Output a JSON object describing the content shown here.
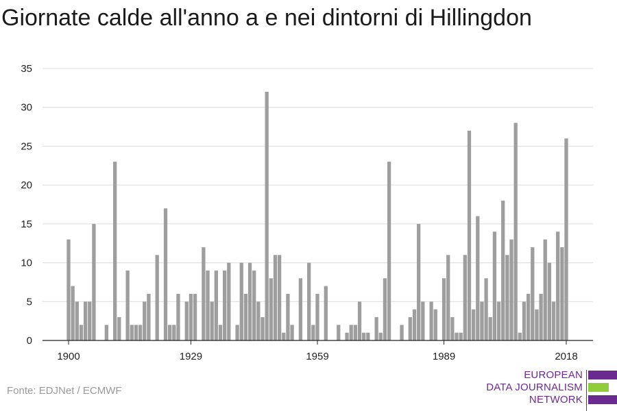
{
  "title": "Giornate calde all'anno a e nei dintorni di Hillingdon",
  "source": "Fonte: EDJNet / ECMWF",
  "logo": {
    "lines": [
      "EUROPEAN",
      "DATA JOURNALISM",
      "NETWORK"
    ],
    "colors": [
      "#6b2a8f",
      "#8fce3a",
      "#6b2a8f"
    ]
  },
  "chart_data": {
    "type": "bar",
    "title": "Giornate calde all'anno a e nei dintorni di Hillingdon",
    "xlabel": "",
    "ylabel": "",
    "x": [
      1900,
      1901,
      1902,
      1903,
      1904,
      1905,
      1906,
      1907,
      1908,
      1909,
      1910,
      1911,
      1912,
      1913,
      1914,
      1915,
      1916,
      1917,
      1918,
      1919,
      1920,
      1921,
      1922,
      1923,
      1924,
      1925,
      1926,
      1927,
      1928,
      1929,
      1930,
      1931,
      1932,
      1933,
      1934,
      1935,
      1936,
      1937,
      1938,
      1939,
      1940,
      1941,
      1942,
      1943,
      1944,
      1945,
      1946,
      1947,
      1948,
      1949,
      1950,
      1951,
      1952,
      1953,
      1954,
      1955,
      1956,
      1957,
      1958,
      1959,
      1960,
      1961,
      1962,
      1963,
      1964,
      1965,
      1966,
      1967,
      1968,
      1969,
      1970,
      1971,
      1972,
      1973,
      1974,
      1975,
      1976,
      1977,
      1978,
      1979,
      1980,
      1981,
      1982,
      1983,
      1984,
      1985,
      1986,
      1987,
      1988,
      1989,
      1990,
      1991,
      1992,
      1993,
      1994,
      1995,
      1996,
      1997,
      1998,
      1999,
      2000,
      2001,
      2002,
      2003,
      2004,
      2005,
      2006,
      2007,
      2008,
      2009,
      2010,
      2011,
      2012,
      2013,
      2014,
      2015,
      2016,
      2017,
      2018
    ],
    "values": [
      13,
      7,
      5,
      2,
      5,
      5,
      15,
      0,
      0,
      2,
      0,
      23,
      3,
      0,
      9,
      2,
      2,
      2,
      5,
      6,
      0,
      11,
      0,
      17,
      2,
      2,
      6,
      0,
      5,
      6,
      6,
      0,
      12,
      9,
      5,
      9,
      2,
      9,
      10,
      0,
      2,
      10,
      6,
      10,
      9,
      5,
      3,
      32,
      8,
      11,
      11,
      1,
      6,
      2,
      0,
      8,
      0,
      10,
      2,
      6,
      0,
      7,
      0,
      0,
      2,
      0,
      1,
      2,
      2,
      5,
      1,
      1,
      0,
      3,
      1,
      8,
      23,
      0,
      0,
      2,
      0,
      3,
      4,
      15,
      5,
      0,
      5,
      4,
      0,
      8,
      11,
      3,
      1,
      1,
      11,
      27,
      4,
      16,
      5,
      8,
      3,
      14,
      5,
      18,
      11,
      13,
      28,
      1,
      5,
      6,
      12,
      4,
      6,
      13,
      10,
      5,
      14,
      12,
      26
    ],
    "xticks": [
      1900,
      1929,
      1959,
      1989,
      2018
    ],
    "yticks": [
      0,
      5,
      10,
      15,
      20,
      25,
      30,
      35
    ],
    "ylim": [
      0,
      35
    ],
    "xlim": [
      1900,
      2018
    ],
    "bar_color": "#9e9e9e",
    "grid": true,
    "legend": "none"
  }
}
